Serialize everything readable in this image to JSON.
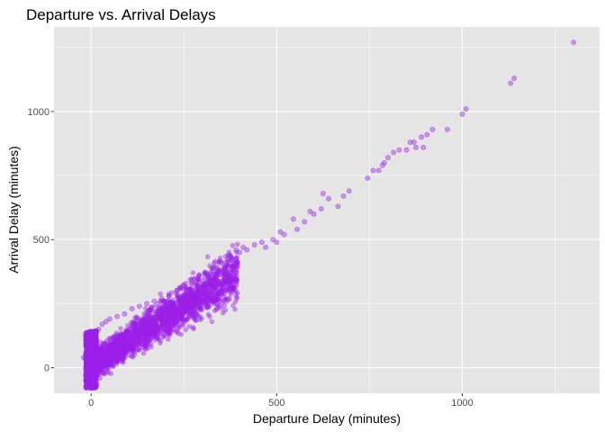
{
  "chart_data": {
    "type": "scatter",
    "title": "Departure vs. Arrival Delays",
    "xlabel": "Departure Delay (minutes)",
    "ylabel": "Arrival Delay (minutes)",
    "xlim": [
      -100,
      1370
    ],
    "ylim": [
      -100,
      1330
    ],
    "x_ticks": [
      0,
      500,
      1000
    ],
    "y_ticks": [
      0,
      500,
      1000
    ],
    "grid": true,
    "legend": "none",
    "colors": {
      "panel": "#e5e5e5",
      "grid": "#ffffff",
      "point": "#9b1fe8"
    },
    "point_opacity": 0.4,
    "series": [
      {
        "points": [
          [
            -20,
            40
          ],
          [
            -15,
            0
          ],
          [
            -10,
            -30
          ],
          [
            -5,
            -60
          ],
          [
            0,
            -80
          ],
          [
            5,
            100
          ],
          [
            8,
            130
          ],
          [
            10,
            -40
          ],
          [
            15,
            90
          ],
          [
            20,
            150
          ],
          [
            25,
            40
          ],
          [
            30,
            170
          ],
          [
            35,
            60
          ],
          [
            40,
            180
          ],
          [
            45,
            80
          ],
          [
            50,
            190
          ],
          [
            60,
            120
          ],
          [
            70,
            200
          ],
          [
            80,
            110
          ],
          [
            90,
            210
          ],
          [
            100,
            140
          ],
          [
            110,
            230
          ],
          [
            120,
            160
          ],
          [
            130,
            240
          ],
          [
            140,
            180
          ],
          [
            150,
            250
          ],
          [
            160,
            200
          ],
          [
            170,
            260
          ],
          [
            180,
            220
          ],
          [
            190,
            270
          ],
          [
            200,
            240
          ],
          [
            210,
            280
          ],
          [
            220,
            250
          ],
          [
            230,
            300
          ],
          [
            240,
            270
          ],
          [
            250,
            320
          ],
          [
            260,
            290
          ],
          [
            270,
            330
          ],
          [
            280,
            300
          ],
          [
            290,
            360
          ],
          [
            300,
            320
          ],
          [
            310,
            370
          ],
          [
            320,
            340
          ],
          [
            330,
            390
          ],
          [
            340,
            360
          ],
          [
            350,
            410
          ],
          [
            360,
            390
          ],
          [
            370,
            440
          ],
          [
            380,
            420
          ],
          [
            390,
            460
          ],
          [
            400,
            450
          ],
          [
            410,
            470
          ],
          [
            420,
            460
          ],
          [
            440,
            480
          ],
          [
            460,
            490
          ],
          [
            470,
            470
          ],
          [
            490,
            500
          ],
          [
            500,
            490
          ],
          [
            510,
            530
          ],
          [
            520,
            520
          ],
          [
            545,
            580
          ],
          [
            555,
            540
          ],
          [
            575,
            570
          ],
          [
            590,
            610
          ],
          [
            600,
            600
          ],
          [
            620,
            620
          ],
          [
            625,
            680
          ],
          [
            640,
            660
          ],
          [
            665,
            630
          ],
          [
            680,
            670
          ],
          [
            695,
            690
          ],
          [
            745,
            740
          ],
          [
            760,
            770
          ],
          [
            775,
            770
          ],
          [
            785,
            790
          ],
          [
            790,
            800
          ],
          [
            800,
            820
          ],
          [
            815,
            840
          ],
          [
            830,
            850
          ],
          [
            850,
            850
          ],
          [
            860,
            880
          ],
          [
            870,
            880
          ],
          [
            875,
            860
          ],
          [
            890,
            900
          ],
          [
            895,
            860
          ],
          [
            905,
            910
          ],
          [
            920,
            930
          ],
          [
            960,
            930
          ],
          [
            1000,
            990
          ],
          [
            1010,
            1010
          ],
          [
            1130,
            1110
          ],
          [
            1140,
            1130
          ],
          [
            1300,
            1270
          ]
        ]
      }
    ]
  }
}
